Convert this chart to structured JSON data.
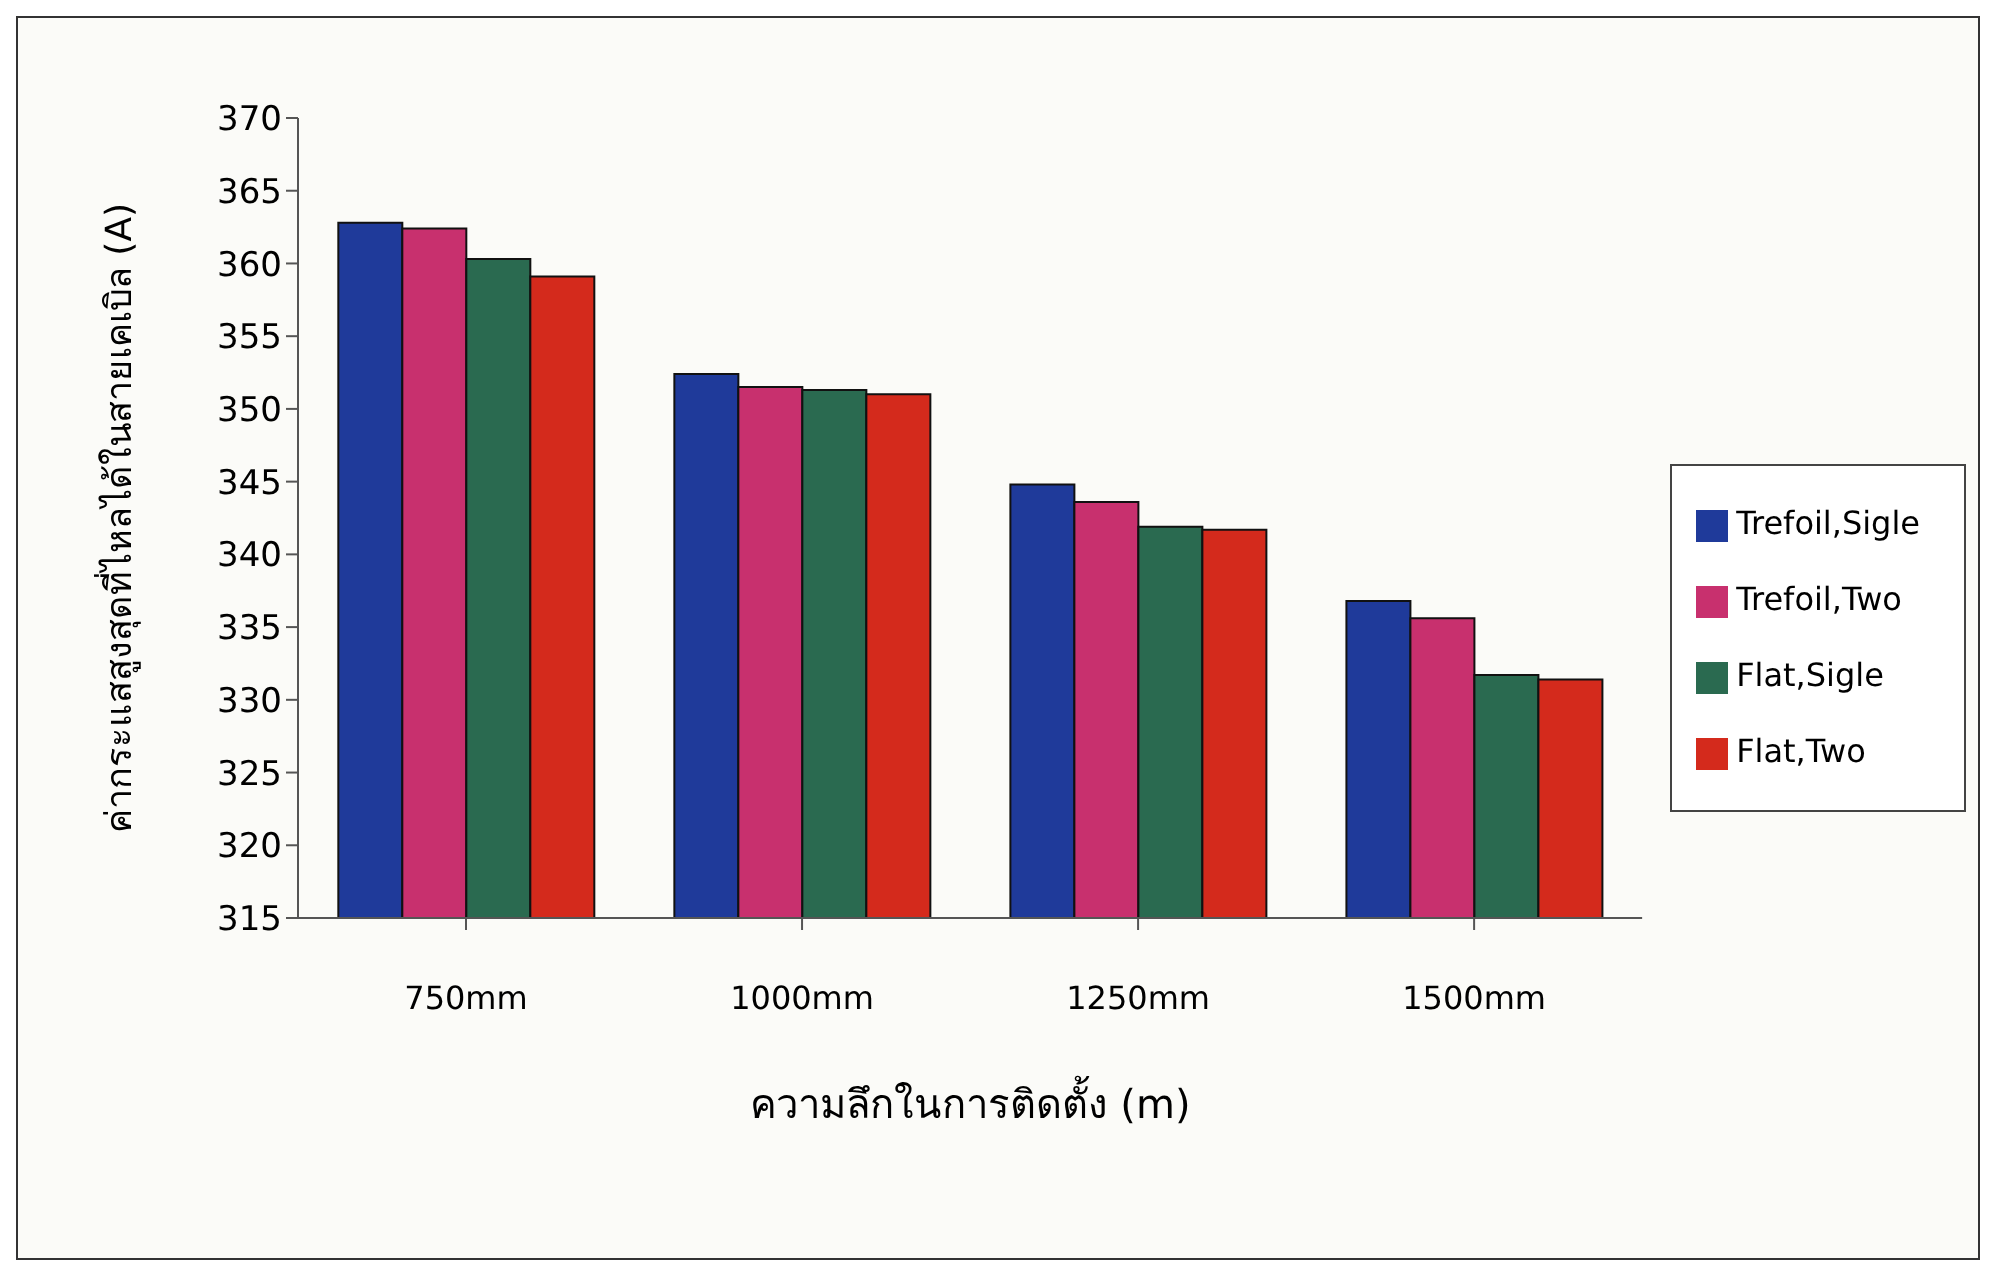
{
  "chart_data": {
    "type": "bar",
    "xlabel": "ความลึกในการติดตั้ง (m)",
    "ylabel": "ค่ากระแสสูงสุดที่ไหลได้ในสายเคเบิล (A)",
    "categories": [
      "750mm",
      "1000mm",
      "1250mm",
      "1500mm"
    ],
    "series": [
      {
        "name": "Trefoil,Sigle",
        "color": "#1f3a9a",
        "values": [
          362.8,
          352.4,
          344.8,
          336.8
        ]
      },
      {
        "name": "Trefoil,Two",
        "color": "#c8306e",
        "values": [
          362.4,
          351.5,
          343.6,
          335.6
        ]
      },
      {
        "name": "Flat,Sigle",
        "color": "#2a6a50",
        "values": [
          360.3,
          351.3,
          341.9,
          331.7
        ]
      },
      {
        "name": "Flat,Two",
        "color": "#d42a1c",
        "values": [
          359.1,
          351.0,
          341.7,
          331.4
        ]
      }
    ],
    "ylim": [
      315,
      370
    ],
    "yticks": [
      315,
      320,
      325,
      330,
      335,
      340,
      345,
      350,
      355,
      360,
      365,
      370
    ],
    "grid": false,
    "legend": "right"
  }
}
